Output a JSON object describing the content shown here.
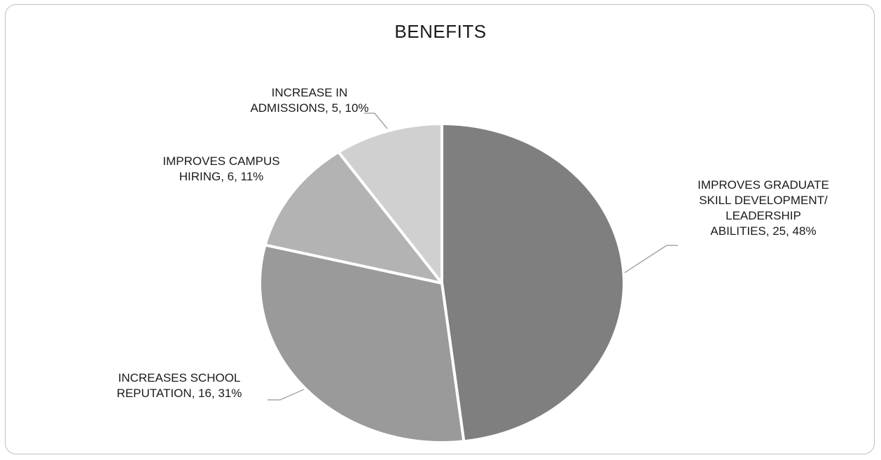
{
  "chart_data": {
    "type": "pie",
    "title": "BENEFITS",
    "slices": [
      {
        "label_lines": [
          "IMPROVES GRADUATE",
          "SKILL DEVELOPMENT/",
          "LEADERSHIP",
          "ABILITIES, 25, 48%"
        ],
        "category": "IMPROVES GRADUATE SKILL DEVELOPMENT/ LEADERSHIP ABILITIES",
        "value": 25,
        "percent": "48%",
        "color": "#7f7f7f"
      },
      {
        "label_lines": [
          "INCREASES SCHOOL",
          "REPUTATION, 16, 31%"
        ],
        "category": "INCREASES SCHOOL REPUTATION",
        "value": 16,
        "percent": "31%",
        "color": "#9a9a9a"
      },
      {
        "label_lines": [
          "IMPROVES CAMPUS",
          "HIRING, 6, 11%"
        ],
        "category": "IMPROVES CAMPUS HIRING",
        "value": 6,
        "percent": "11%",
        "color": "#b3b3b3"
      },
      {
        "label_lines": [
          "INCREASE IN",
          "ADMISSIONS, 5, 10%"
        ],
        "category": "INCREASE IN ADMISSIONS",
        "value": 5,
        "percent": "10%",
        "color": "#d0d0d0"
      }
    ],
    "legend": "none",
    "data_labels": "category, value, percent"
  }
}
